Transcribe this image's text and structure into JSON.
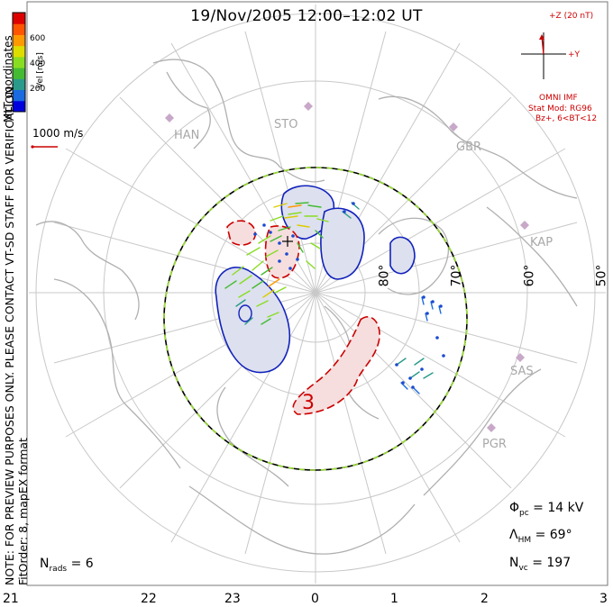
{
  "title": "19/Nov/2005 12:00–12:02 UT",
  "coordinates_label": "MLT coordinates",
  "color_scale": {
    "label": "Vel [m/s]",
    "ticks": [
      "600",
      "400",
      "200"
    ],
    "colors": [
      "#0000dd",
      "#1a6ae0",
      "#2a9a8a",
      "#44bb33",
      "#88dd22",
      "#dddd00",
      "#ff9900",
      "#ff5500",
      "#dd0000"
    ]
  },
  "reference_vector": "1000 m/s",
  "notice_text": "NOTE: FOR PREVIEW PURPOSES ONLY. PLEASE CONTACT VT-SD STAFF FOR VERIFICATION.",
  "fit_order_text": "FitOrder: 8, mapEX format",
  "imf": {
    "z_label": "+Z (20 nT)",
    "y_label": "+Y",
    "omni_label": "OMNI IMF",
    "model_label": "Stat Mod: RG96",
    "condition_label": "Bz+, 6<BT<12"
  },
  "latitude_labels": [
    "80°",
    "70°",
    "60°",
    "50°"
  ],
  "radars": [
    "HAN",
    "STO",
    "GBR",
    "KAP",
    "SAS",
    "PGR"
  ],
  "contour_label": "3",
  "stats": {
    "n_rads": "N",
    "n_rads_sub": "rads",
    "n_rads_value": "= 6",
    "phi": "Φ",
    "phi_sub": "pc",
    "phi_value": "= 14 kV",
    "lambda": "Λ",
    "lambda_sub": "HM",
    "lambda_value": "= 69°",
    "nvc": "N",
    "nvc_sub": "vc",
    "nvc_value": "= 197"
  },
  "mlt_hours": [
    "21",
    "22",
    "23",
    "0",
    "1",
    "2",
    "3"
  ]
}
